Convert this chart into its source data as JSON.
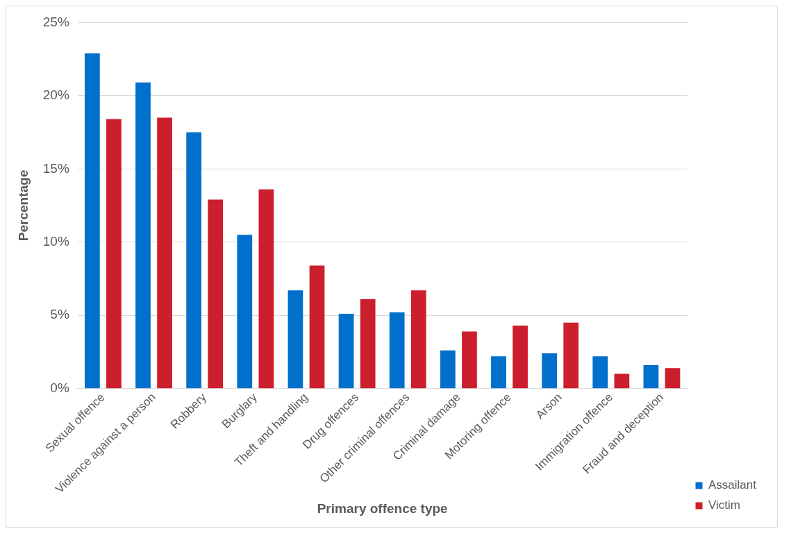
{
  "chart_data": {
    "type": "bar",
    "xlabel": "Primary offence type",
    "ylabel": "Percentage",
    "categories": [
      "Sexual offence",
      "Violence against a person",
      "Robbery",
      "Burglary",
      "Theft and handling",
      "Drug offences",
      "Other criminal offences",
      "Criminal damage",
      "Motoring offence",
      "Arson",
      "Immigration offence",
      "Fraud and deception"
    ],
    "series": [
      {
        "name": "Assailant",
        "color": "#0070cc",
        "values": [
          22.9,
          20.9,
          17.5,
          10.5,
          6.7,
          5.1,
          5.2,
          2.6,
          2.2,
          2.4,
          2.2,
          1.6
        ]
      },
      {
        "name": "Victim",
        "color": "#cc1f2d",
        "values": [
          18.4,
          18.5,
          12.9,
          13.6,
          8.4,
          6.1,
          6.7,
          3.9,
          4.3,
          4.5,
          1.0,
          1.4
        ]
      }
    ],
    "ylim": [
      0,
      25
    ],
    "yticks": [
      {
        "value": 0,
        "label": "0%"
      },
      {
        "value": 5,
        "label": "5%"
      },
      {
        "value": 10,
        "label": "10%"
      },
      {
        "value": 15,
        "label": "15%"
      },
      {
        "value": 20,
        "label": "20%"
      },
      {
        "value": 25,
        "label": "25%"
      }
    ],
    "grid": "y",
    "legend": "bottom right"
  }
}
